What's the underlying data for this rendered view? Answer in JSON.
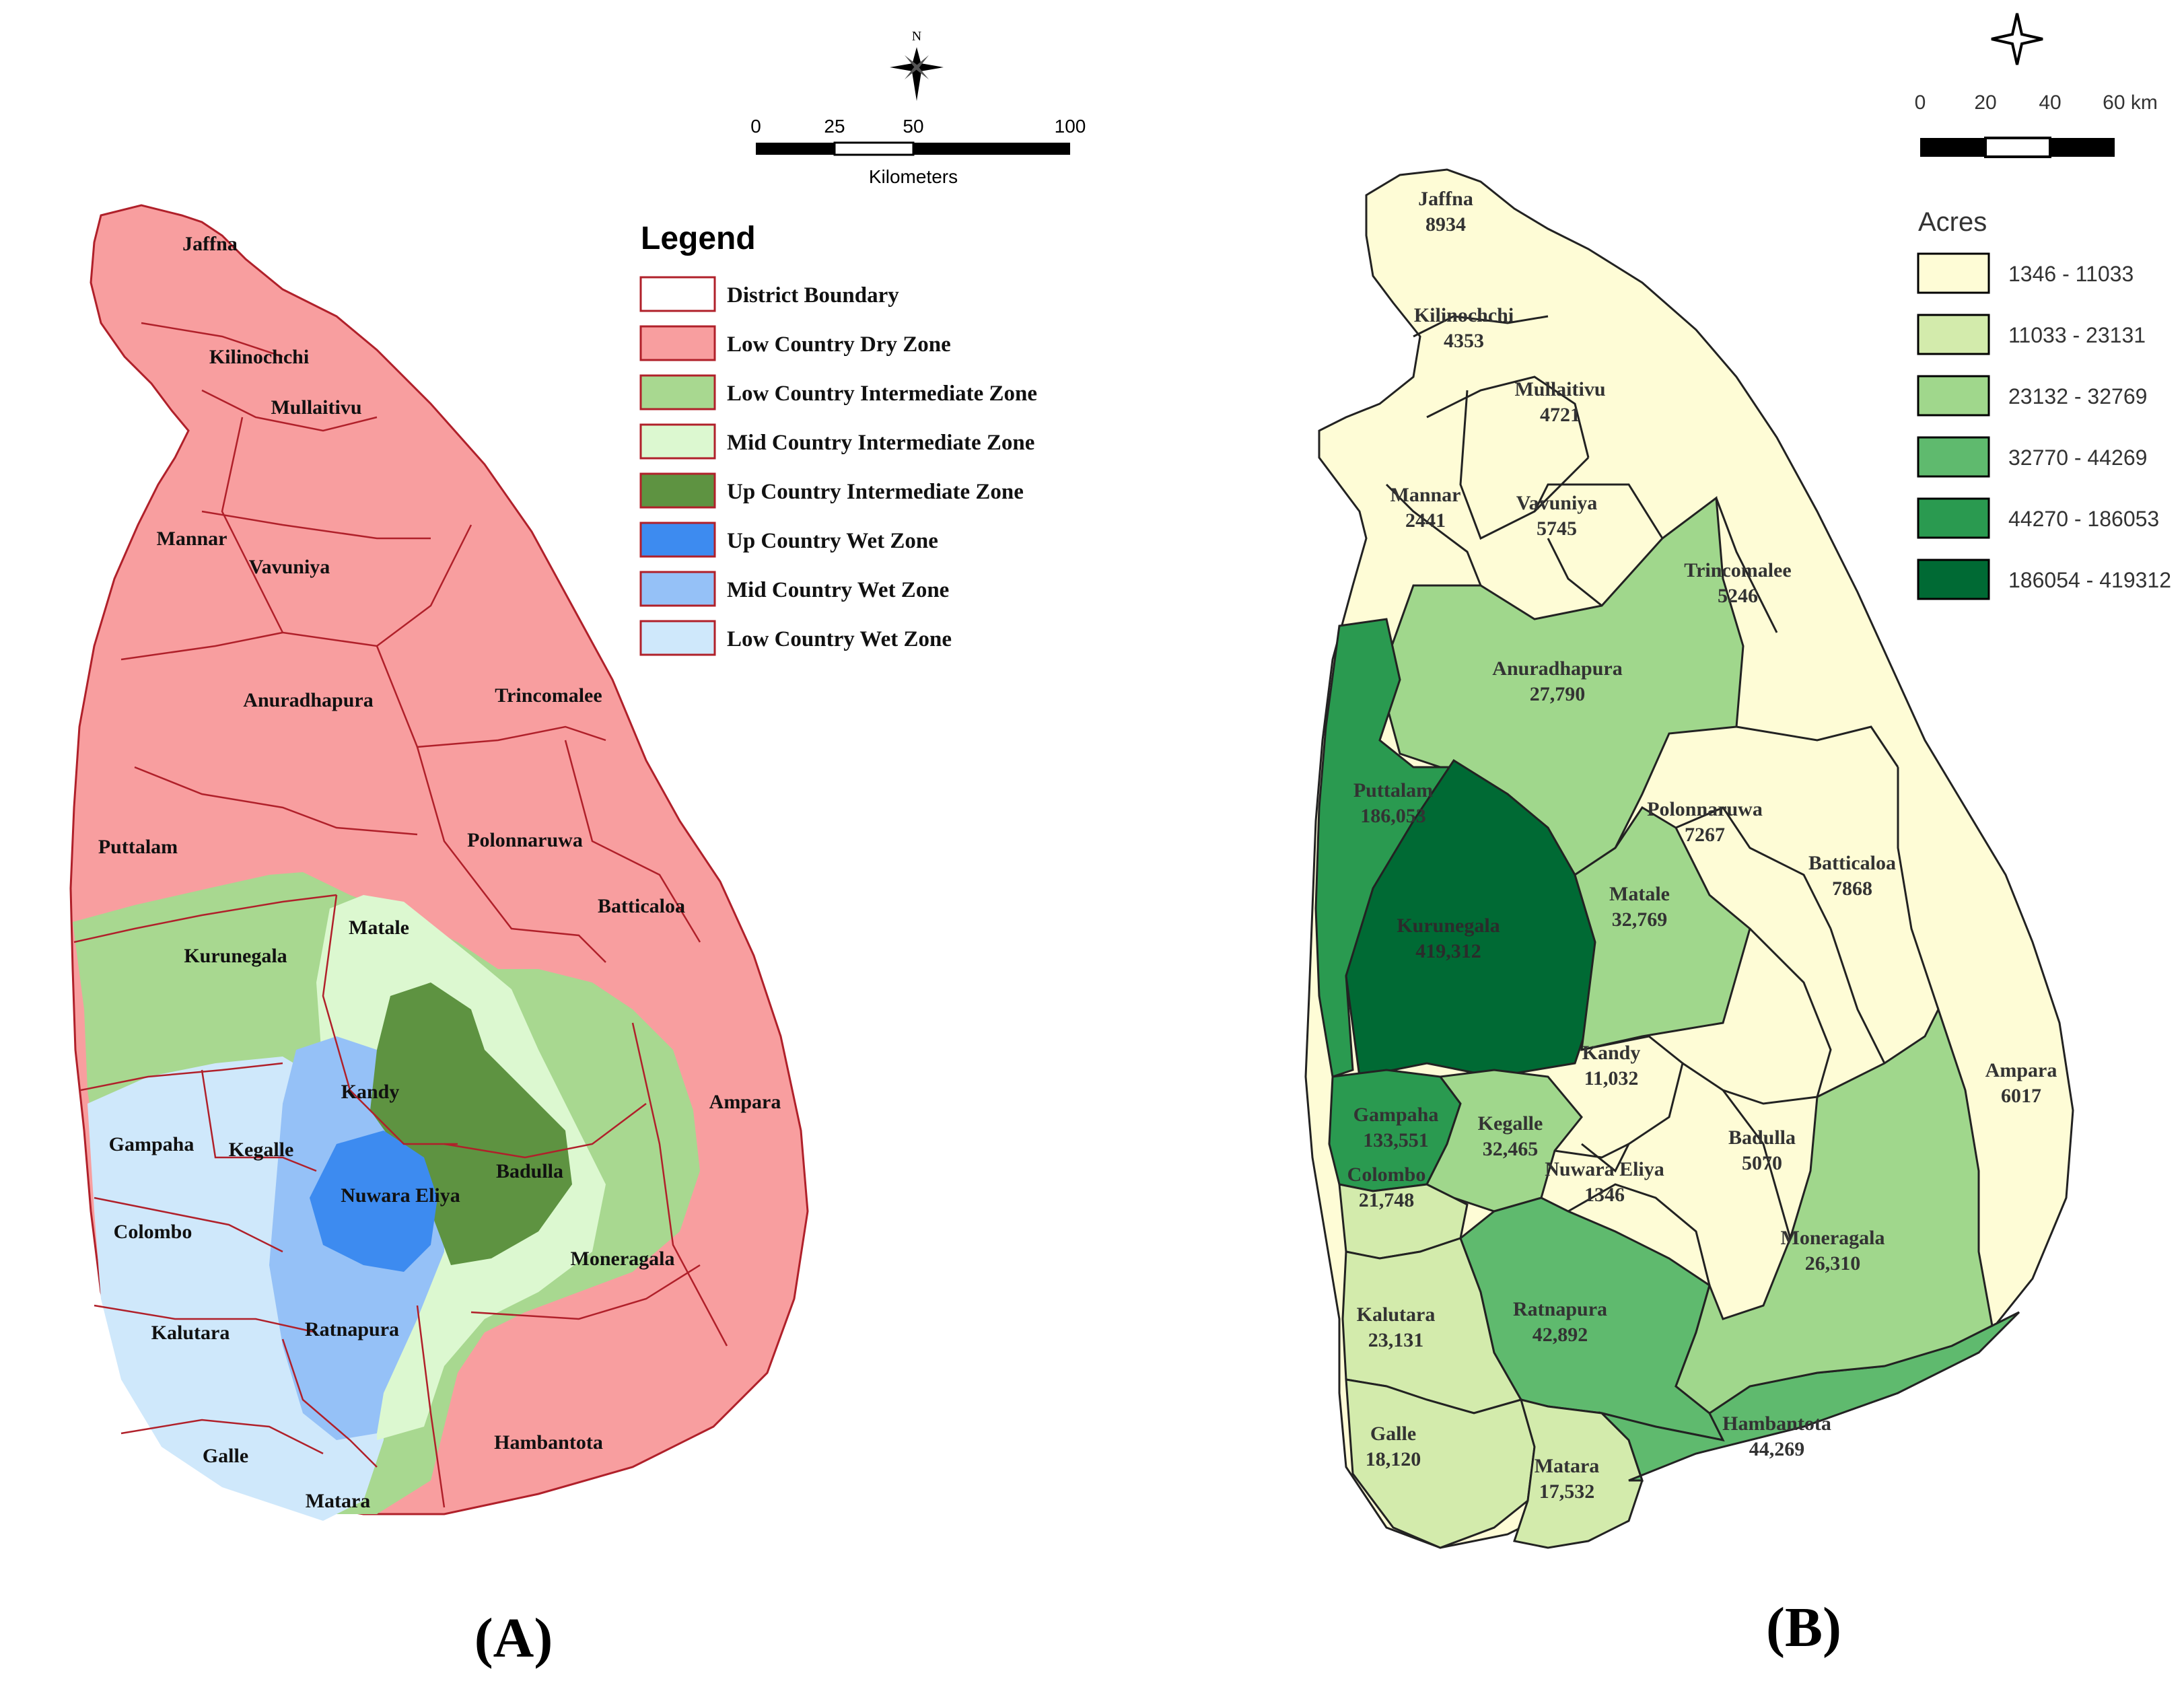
{
  "panel_a": {
    "label": "(A)",
    "legend_title": "Legend",
    "legend": [
      {
        "label": "District Boundary",
        "fill": "#ffffff",
        "stroke": "#b0202a"
      },
      {
        "label": "Low Country Dry Zone",
        "fill": "#f89e9f",
        "stroke": "#b0202a"
      },
      {
        "label": "Low Country Intermediate Zone",
        "fill": "#a8d890",
        "stroke": "#b0202a"
      },
      {
        "label": "Mid Country Intermediate Zone",
        "fill": "#dcf8d0",
        "stroke": "#b0202a"
      },
      {
        "label": "Up Country Intermediate Zone",
        "fill": "#5e9341",
        "stroke": "#b0202a"
      },
      {
        "label": "Up Country Wet Zone",
        "fill": "#3d8bf0",
        "stroke": "#b0202a"
      },
      {
        "label": "Mid Country Wet Zone",
        "fill": "#95c1f7",
        "stroke": "#b0202a"
      },
      {
        "label": "Low Country Wet Zone",
        "fill": "#cfe8fb",
        "stroke": "#b0202a"
      }
    ],
    "north": "N",
    "scale_ticks": [
      "0",
      "25",
      "50",
      "100"
    ],
    "scale_unit": "Kilometers",
    "districts": [
      "Jaffna",
      "Kilinochchi",
      "Mullaitivu",
      "Mannar",
      "Vavuniya",
      "Anuradhapura",
      "Trincomalee",
      "Puttalam",
      "Polonnaruwa",
      "Batticaloa",
      "Kurunegala",
      "Matale",
      "Kandy",
      "Gampaha",
      "Kegalle",
      "Nuwara Eliya",
      "Badulla",
      "Ampara",
      "Colombo",
      "Moneragala",
      "Kalutara",
      "Ratnapura",
      "Galle",
      "Hambantota",
      "Matara"
    ]
  },
  "panel_b": {
    "label": "(B)",
    "legend_title": "Acres",
    "legend": [
      {
        "label": "1346 - 11033",
        "fill": "#fefcd6"
      },
      {
        "label": "11033 - 23131",
        "fill": "#d3ebac"
      },
      {
        "label": "23132 - 32769",
        "fill": "#a0d78c"
      },
      {
        "label": "32770 - 44269",
        "fill": "#5fba6e"
      },
      {
        "label": "44270 - 186053",
        "fill": "#2a9a50"
      },
      {
        "label": "186054 - 419312",
        "fill": "#006a34"
      }
    ],
    "scale_ticks": [
      "0",
      "20",
      "40",
      "60 km"
    ],
    "districts": [
      {
        "name": "Jaffna",
        "value": "8934"
      },
      {
        "name": "Kilinochchi",
        "value": "4353"
      },
      {
        "name": "Mullaitivu",
        "value": "4721"
      },
      {
        "name": "Mannar",
        "value": "2441"
      },
      {
        "name": "Vavuniya",
        "value": "5745"
      },
      {
        "name": "Trincomalee",
        "value": "5246"
      },
      {
        "name": "Anuradhapura",
        "value": "27,790"
      },
      {
        "name": "Puttalam",
        "value": "186,053"
      },
      {
        "name": "Polonnaruwa",
        "value": "7267"
      },
      {
        "name": "Batticaloa",
        "value": "7868"
      },
      {
        "name": "Matale",
        "value": "32,769"
      },
      {
        "name": "Kurunegala",
        "value": "419,312"
      },
      {
        "name": "Kandy",
        "value": "11,032"
      },
      {
        "name": "Ampara",
        "value": "6017"
      },
      {
        "name": "Gampaha",
        "value": "133,551"
      },
      {
        "name": "Kegalle",
        "value": "32,465"
      },
      {
        "name": "Badulla",
        "value": "5070"
      },
      {
        "name": "Nuwara Eliya",
        "value": "1346"
      },
      {
        "name": "Colombo",
        "value": "21,748"
      },
      {
        "name": "Moneragala",
        "value": "26,310"
      },
      {
        "name": "Kalutara",
        "value": "23,131"
      },
      {
        "name": "Ratnapura",
        "value": "42,892"
      },
      {
        "name": "Hambantota",
        "value": "44,269"
      },
      {
        "name": "Galle",
        "value": "18,120"
      },
      {
        "name": "Matara",
        "value": "17,532"
      }
    ]
  }
}
